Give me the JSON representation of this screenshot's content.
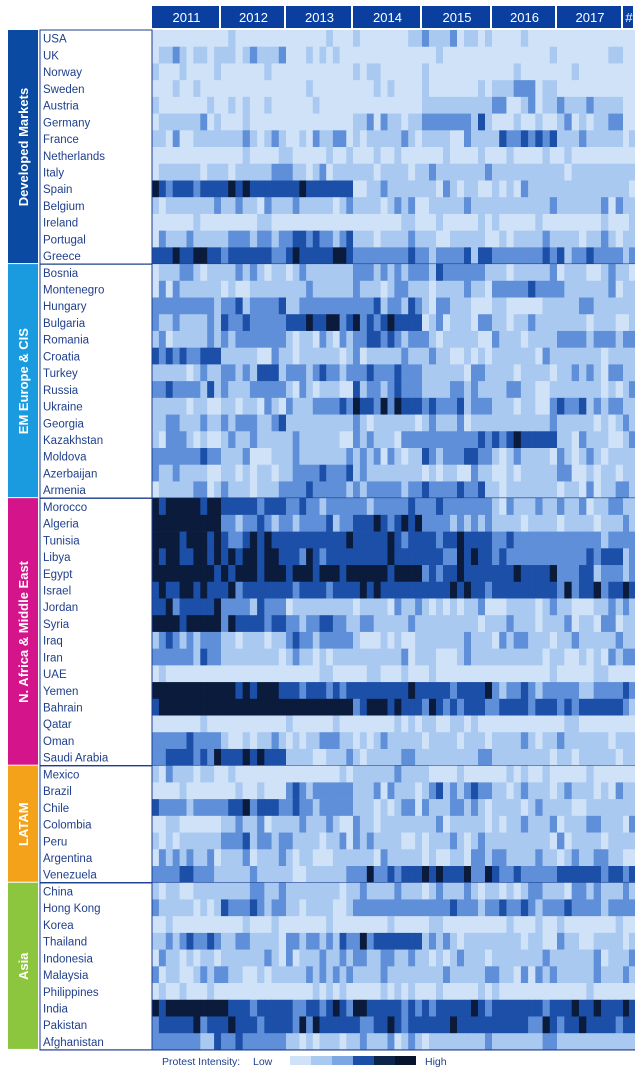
{
  "chart_data": {
    "type": "heatmap",
    "columns": [
      "2011",
      "2012",
      "2013",
      "2014",
      "2015",
      "2016",
      "2017",
      "#"
    ],
    "value_scale": {
      "min": 0,
      "max": 4
    },
    "groups": [
      {
        "name": "Developed Markets",
        "color": "#0b4aa2",
        "rows": [
          {
            "name": "USA",
            "values": [
              0,
              0,
              0,
              0,
              1,
              0,
              0,
              0
            ]
          },
          {
            "name": "UK",
            "values": [
              1,
              1,
              0,
              0,
              0,
              0,
              0,
              0
            ]
          },
          {
            "name": "Norway",
            "values": [
              0,
              0,
              0,
              0,
              0,
              0,
              0,
              0
            ]
          },
          {
            "name": "Sweden",
            "values": [
              0,
              0,
              0,
              0,
              0,
              1,
              0,
              0
            ]
          },
          {
            "name": "Austria",
            "values": [
              0,
              0,
              0,
              0,
              1,
              1,
              1,
              0
            ]
          },
          {
            "name": "Germany",
            "values": [
              1,
              0,
              0,
              1,
              2,
              0,
              1,
              0
            ]
          },
          {
            "name": "France",
            "values": [
              1,
              1,
              1,
              1,
              1,
              2,
              1,
              1
            ]
          },
          {
            "name": "Netherlands",
            "values": [
              0,
              0,
              0,
              0,
              0,
              0,
              0,
              0
            ]
          },
          {
            "name": "Italy",
            "values": [
              1,
              1,
              1,
              1,
              1,
              1,
              1,
              1
            ]
          },
          {
            "name": "Spain",
            "values": [
              3,
              3,
              3,
              1,
              1,
              1,
              1,
              1
            ]
          },
          {
            "name": "Belgium",
            "values": [
              1,
              1,
              1,
              1,
              1,
              1,
              1,
              1
            ]
          },
          {
            "name": "Ireland",
            "values": [
              0,
              0,
              0,
              0,
              0,
              0,
              0,
              0
            ]
          },
          {
            "name": "Portugal",
            "values": [
              1,
              2,
              2,
              1,
              1,
              1,
              1,
              1
            ]
          },
          {
            "name": "Greece",
            "values": [
              3,
              3,
              3,
              2,
              2,
              2,
              2,
              2
            ]
          }
        ]
      },
      {
        "name": "EM Europe & CIS",
        "color": "#1a9be0",
        "rows": [
          {
            "name": "Bosnia",
            "values": [
              1,
              1,
              1,
              2,
              2,
              1,
              1,
              1
            ]
          },
          {
            "name": "Montenegro",
            "values": [
              1,
              1,
              1,
              1,
              1,
              2,
              1,
              1
            ]
          },
          {
            "name": "Hungary",
            "values": [
              2,
              2,
              2,
              2,
              1,
              1,
              1,
              1
            ]
          },
          {
            "name": "Bulgaria",
            "values": [
              1,
              2,
              3,
              3,
              1,
              1,
              1,
              1
            ]
          },
          {
            "name": "Romania",
            "values": [
              1,
              2,
              1,
              2,
              1,
              1,
              2,
              2
            ]
          },
          {
            "name": "Croatia",
            "values": [
              2,
              1,
              1,
              1,
              1,
              1,
              1,
              1
            ]
          },
          {
            "name": "Turkey",
            "values": [
              1,
              2,
              2,
              2,
              1,
              1,
              1,
              1
            ]
          },
          {
            "name": "Russia",
            "values": [
              2,
              2,
              1,
              2,
              1,
              1,
              1,
              1
            ]
          },
          {
            "name": "Ukraine",
            "values": [
              1,
              1,
              2,
              3,
              2,
              1,
              2,
              1
            ]
          },
          {
            "name": "Georgia",
            "values": [
              1,
              2,
              1,
              1,
              1,
              1,
              1,
              1
            ]
          },
          {
            "name": "Kazakhstan",
            "values": [
              1,
              1,
              1,
              1,
              2,
              3,
              1,
              1
            ]
          },
          {
            "name": "Moldova",
            "values": [
              2,
              1,
              1,
              1,
              2,
              1,
              1,
              1
            ]
          },
          {
            "name": "Azerbaijan",
            "values": [
              1,
              1,
              2,
              1,
              1,
              1,
              1,
              1
            ]
          },
          {
            "name": "Armenia",
            "values": [
              1,
              1,
              2,
              2,
              2,
              1,
              1,
              1
            ]
          }
        ]
      },
      {
        "name": "N. Africa & Middle East",
        "color": "#d4148a",
        "rows": [
          {
            "name": "Morocco",
            "values": [
              4,
              3,
              2,
              2,
              2,
              1,
              1,
              1
            ]
          },
          {
            "name": "Algeria",
            "values": [
              4,
              2,
              2,
              3,
              2,
              1,
              1,
              1
            ]
          },
          {
            "name": "Tunisia",
            "values": [
              4,
              3,
              3,
              3,
              3,
              2,
              2,
              2
            ]
          },
          {
            "name": "Libya",
            "values": [
              4,
              4,
              3,
              3,
              3,
              2,
              2,
              2
            ]
          },
          {
            "name": "Egypt",
            "values": [
              4,
              4,
              4,
              4,
              3,
              3,
              2,
              2
            ]
          },
          {
            "name": "Israel",
            "values": [
              3,
              3,
              3,
              3,
              3,
              3,
              3,
              3
            ]
          },
          {
            "name": "Jordan",
            "values": [
              3,
              2,
              1,
              1,
              1,
              1,
              1,
              1
            ]
          },
          {
            "name": "Syria",
            "values": [
              4,
              3,
              2,
              1,
              1,
              1,
              1,
              1
            ]
          },
          {
            "name": "Iraq",
            "values": [
              2,
              1,
              2,
              1,
              1,
              1,
              1,
              1
            ]
          },
          {
            "name": "Iran",
            "values": [
              2,
              1,
              1,
              1,
              1,
              1,
              1,
              2
            ]
          },
          {
            "name": "UAE",
            "values": [
              0,
              0,
              0,
              0,
              0,
              0,
              0,
              0
            ]
          },
          {
            "name": "Yemen",
            "values": [
              4,
              4,
              3,
              3,
              3,
              2,
              2,
              2
            ]
          },
          {
            "name": "Bahrain",
            "values": [
              4,
              4,
              4,
              3,
              3,
              3,
              3,
              2
            ]
          },
          {
            "name": "Qatar",
            "values": [
              0,
              0,
              0,
              0,
              0,
              0,
              0,
              0
            ]
          },
          {
            "name": "Oman",
            "values": [
              2,
              1,
              1,
              1,
              1,
              1,
              1,
              1
            ]
          },
          {
            "name": "Saudi Arabia",
            "values": [
              3,
              3,
              1,
              1,
              1,
              1,
              1,
              1
            ]
          }
        ]
      },
      {
        "name": "LATAM",
        "color": "#f5a21b",
        "rows": [
          {
            "name": "Mexico",
            "values": [
              1,
              0,
              0,
              1,
              0,
              0,
              0,
              0
            ]
          },
          {
            "name": "Brazil",
            "values": [
              0,
              0,
              2,
              1,
              2,
              1,
              1,
              1
            ]
          },
          {
            "name": "Chile",
            "values": [
              2,
              3,
              2,
              1,
              1,
              1,
              1,
              1
            ]
          },
          {
            "name": "Colombia",
            "values": [
              0,
              1,
              1,
              1,
              1,
              1,
              1,
              1
            ]
          },
          {
            "name": "Peru",
            "values": [
              1,
              2,
              1,
              1,
              1,
              1,
              1,
              1
            ]
          },
          {
            "name": "Argentina",
            "values": [
              1,
              1,
              1,
              1,
              1,
              1,
              1,
              1
            ]
          },
          {
            "name": "Venezuela",
            "values": [
              2,
              1,
              1,
              3,
              3,
              2,
              3,
              3
            ]
          }
        ]
      },
      {
        "name": "Asia",
        "color": "#8cc63f",
        "rows": [
          {
            "name": "China",
            "values": [
              1,
              1,
              1,
              1,
              1,
              1,
              1,
              1
            ]
          },
          {
            "name": "Hong Kong",
            "values": [
              1,
              2,
              1,
              2,
              2,
              2,
              2,
              2
            ]
          },
          {
            "name": "Korea",
            "values": [
              0,
              0,
              0,
              0,
              0,
              0,
              0,
              0
            ]
          },
          {
            "name": "Thailand",
            "values": [
              2,
              1,
              2,
              3,
              1,
              1,
              1,
              1
            ]
          },
          {
            "name": "Indonesia",
            "values": [
              1,
              1,
              1,
              1,
              1,
              1,
              1,
              1
            ]
          },
          {
            "name": "Malaysia",
            "values": [
              1,
              1,
              1,
              1,
              1,
              1,
              1,
              1
            ]
          },
          {
            "name": "Philippines",
            "values": [
              0,
              0,
              0,
              0,
              0,
              0,
              0,
              0
            ]
          },
          {
            "name": "India",
            "values": [
              4,
              3,
              3,
              3,
              3,
              3,
              3,
              3
            ]
          },
          {
            "name": "Pakistan",
            "values": [
              3,
              3,
              3,
              3,
              3,
              3,
              3,
              3
            ]
          },
          {
            "name": "Afghanistan",
            "values": [
              2,
              2,
              1,
              1,
              1,
              1,
              1,
              1
            ]
          }
        ]
      }
    ],
    "legend": {
      "title": "Protest Intensity:",
      "low_label": "Low",
      "high_label": "High",
      "colors": [
        "#cfe2f8",
        "#a9c9f1",
        "#7da7e3",
        "#1c4fa8",
        "#0c2548",
        "#07152c"
      ]
    },
    "palette": {
      "header_bg": "#0a3fa0",
      "header_text": "#ffffff",
      "label_text": "#1f3f8c",
      "cell_scale": [
        "#cfe2f8",
        "#a9c9f1",
        "#5f8fd8",
        "#1c4fa8",
        "#0a1b3c"
      ]
    }
  }
}
